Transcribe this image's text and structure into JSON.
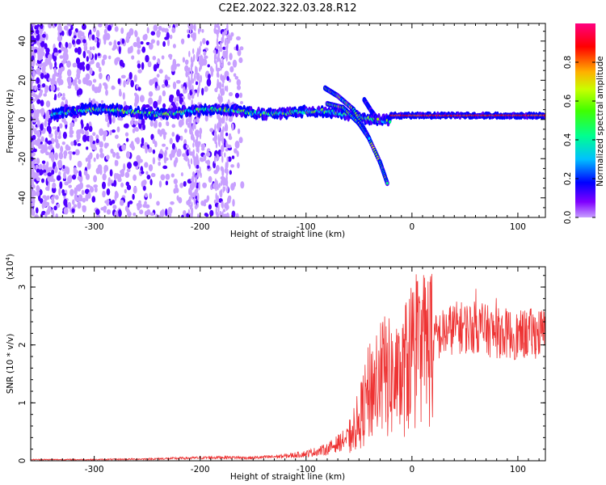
{
  "title": "C2E2.2022.322.03.28.R12",
  "chart_data": [
    {
      "type": "heatmap",
      "xlabel": "Height of straight line (km)",
      "ylabel": "Frequency (Hz)",
      "xlim": [
        -360,
        126
      ],
      "ylim": [
        -50,
        49
      ],
      "x_ticks": [
        -300,
        -200,
        -100,
        0,
        100
      ],
      "x_tick_labels": [
        "-300",
        "-200",
        "-100",
        "0",
        "100"
      ],
      "y_ticks": [
        -40,
        -20,
        0,
        20,
        40
      ],
      "y_tick_labels": [
        "-40",
        "-20",
        "0",
        "20",
        "40"
      ],
      "colorbar": {
        "label": "Normalized spectral amplitude",
        "range": [
          0,
          1
        ],
        "ticks": [
          0.0,
          0.2,
          0.4,
          0.6,
          0.8
        ],
        "tick_labels": [
          "0.0",
          "0.2",
          "0.4",
          "0.6",
          "0.8"
        ],
        "colormap": [
          "#c8a0ff",
          "#5000ff",
          "#0000ff",
          "#00c8ff",
          "#00ff80",
          "#a0ff00",
          "#ffff00",
          "#ff8000",
          "#ff0000",
          "#ff0080"
        ]
      },
      "features": [
        {
          "x_range": [
            -340,
            -20
          ],
          "freq_center": 4,
          "amplitude": 0.45
        },
        {
          "x_range": [
            -80,
            -25
          ],
          "freq_center": [
            14,
            -32
          ],
          "amplitude": 0.5
        },
        {
          "x_range": [
            -20,
            126
          ],
          "freq_center": 2,
          "amplitude": 0.85
        }
      ]
    },
    {
      "type": "line",
      "xlabel": "Height of straight line (km)",
      "ylabel": "SNR (10 * v/v)",
      "y_scale_label": "(x10",
      "y_scale_exponent": "4",
      "xlim": [
        -360,
        126
      ],
      "ylim": [
        0,
        3.35
      ],
      "x_ticks": [
        -300,
        -200,
        -100,
        0,
        100
      ],
      "x_tick_labels": [
        "-300",
        "-200",
        "-100",
        "0",
        "100"
      ],
      "y_ticks": [
        0,
        1,
        2,
        3
      ],
      "y_tick_labels": [
        "0",
        "1",
        "2",
        "3"
      ],
      "series": [
        {
          "color": "#ee3333",
          "x": [
            -360,
            -300,
            -250,
            -200,
            -180,
            -150,
            -120,
            -100,
            -80,
            -60,
            -50,
            -40,
            -30,
            -20,
            -10,
            0,
            10,
            20,
            30,
            40,
            60,
            80,
            90,
            100,
            110,
            126
          ],
          "y": [
            0.02,
            0.02,
            0.03,
            0.05,
            0.06,
            0.05,
            0.08,
            0.12,
            0.2,
            0.4,
            0.7,
            1.2,
            1.5,
            1.4,
            1.4,
            1.9,
            1.9,
            2.1,
            2.2,
            2.3,
            2.3,
            2.2,
            2.2,
            2.15,
            2.2,
            2.2
          ]
        }
      ]
    }
  ]
}
